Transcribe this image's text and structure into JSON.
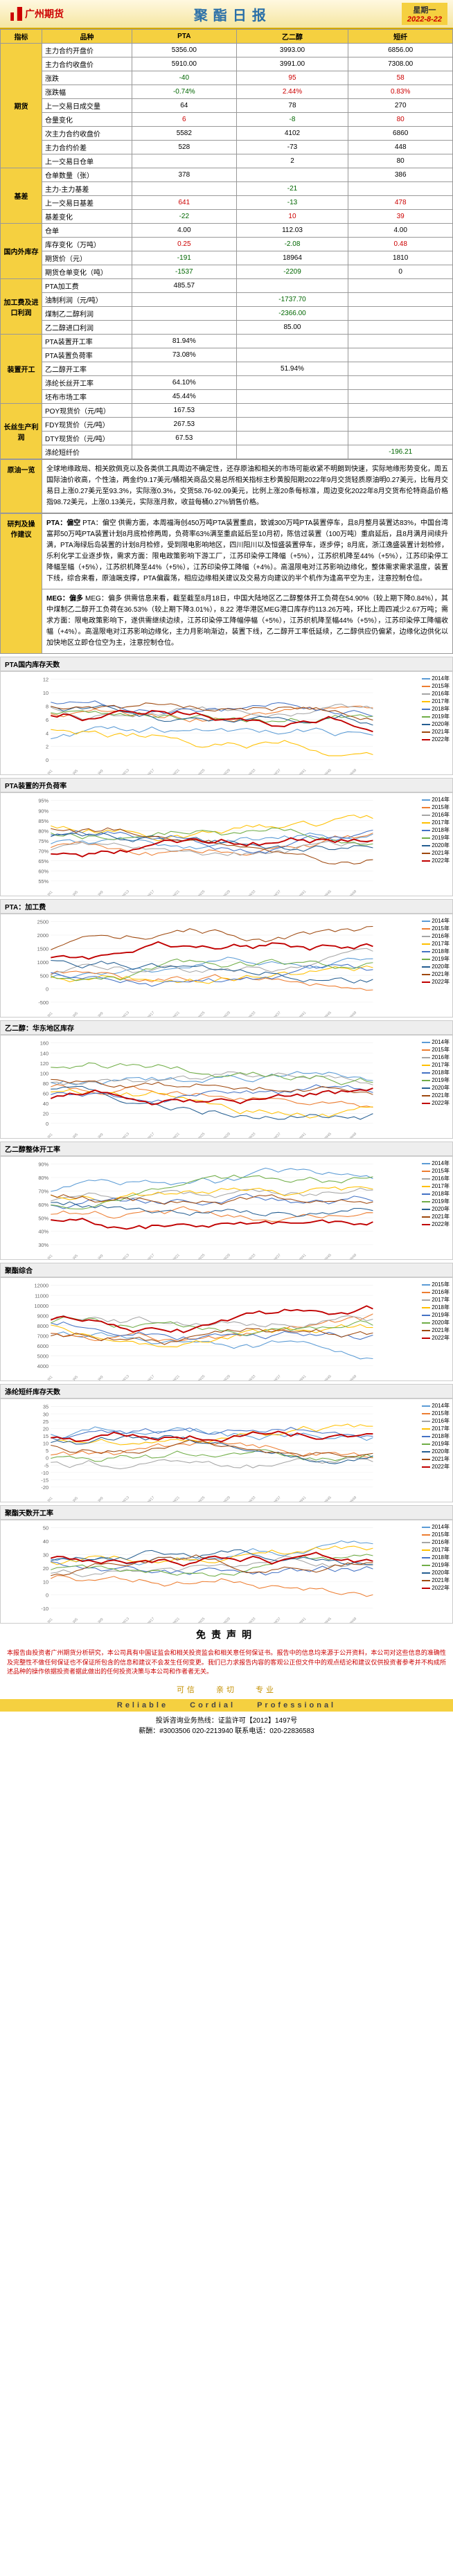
{
  "header": {
    "company": "广州期货",
    "title": "聚酯日报",
    "weekday": "星期一",
    "date": "2022-8-22"
  },
  "table": {
    "headers": [
      "指标",
      "品种",
      "PTA",
      "乙二醇",
      "短纤"
    ],
    "groups": [
      {
        "cat": "期货",
        "rows": [
          {
            "label": "主力合约开盘价",
            "pta": "5356.00",
            "meg": "3993.00",
            "pf": "6856.00"
          },
          {
            "label": "主力合约收盘价",
            "pta": "5910.00",
            "meg": "3991.00",
            "pf": "7308.00"
          },
          {
            "label": "涨跌",
            "pta": "-40",
            "meg": "95",
            "pf": "58",
            "c": [
              "neg",
              "pos",
              "pos"
            ]
          },
          {
            "label": "涨跌幅",
            "pta": "-0.74%",
            "meg": "2.44%",
            "pf": "0.83%",
            "c": [
              "neg",
              "pos",
              "pos"
            ]
          },
          {
            "label": "上一交易日成交量",
            "pta": "64",
            "meg": "78",
            "pf": "270"
          },
          {
            "label": "仓量变化",
            "pta": "6",
            "meg": "-8",
            "pf": "80",
            "c": [
              "pos",
              "neg",
              "pos"
            ]
          },
          {
            "label": "次主力合约收盘价",
            "pta": "5582",
            "meg": "4102",
            "pf": "6860"
          },
          {
            "label": "主力合约价差",
            "pta": "528",
            "meg": "-73",
            "pf": "448"
          },
          {
            "label": "上一交易日仓单",
            "pta": "",
            "meg": "2",
            "pf": "80"
          }
        ]
      },
      {
        "cat": "基差",
        "rows": [
          {
            "label": "仓单数量（张）",
            "pta": "378",
            "meg": "",
            "pf": "386"
          },
          {
            "label": "主力-主力基差",
            "pta": "",
            "meg": "-21",
            "pf": "",
            "c": [
              "",
              "neg",
              ""
            ]
          },
          {
            "label": "上一交易日基差",
            "pta": "641",
            "meg": "-13",
            "pf": "478",
            "c": [
              "pos",
              "neg",
              "pos"
            ]
          },
          {
            "label": "基差变化",
            "pta": "-22",
            "meg": "10",
            "pf": "39",
            "c": [
              "neg",
              "pos",
              "pos"
            ]
          }
        ]
      },
      {
        "cat": "国内外库存",
        "rows": [
          {
            "label": "仓单",
            "pta": "4.00",
            "meg": "112.03",
            "pf": "4.00"
          },
          {
            "label": "库存变化（万吨）",
            "pta": "0.25",
            "meg": "-2.08",
            "pf": "0.48",
            "c": [
              "pos",
              "neg",
              "pos"
            ]
          },
          {
            "label": "期货价（元）",
            "pta": "-191",
            "meg": "18964",
            "pf": "1810",
            "c": [
              "neg",
              "",
              ""
            ]
          },
          {
            "label": "期货仓单变化（吨）",
            "pta": "-1537",
            "meg": "-2209",
            "pf": "0",
            "c": [
              "neg",
              "neg",
              ""
            ]
          }
        ]
      },
      {
        "cat": "加工费及进口利润",
        "rows": [
          {
            "label": "PTA加工费",
            "pta": "485.57",
            "meg": "",
            "pf": ""
          },
          {
            "label": "油制利润（元/吨）",
            "pta": "",
            "meg": "-1737.70",
            "pf": "",
            "c": [
              "",
              "neg",
              ""
            ]
          },
          {
            "label": "煤制乙二醇利润",
            "pta": "",
            "meg": "-2366.00",
            "pf": "",
            "c": [
              "",
              "neg",
              ""
            ]
          },
          {
            "label": "乙二醇进口利润",
            "pta": "",
            "meg": "85.00",
            "pf": ""
          }
        ]
      },
      {
        "cat": "装置开工",
        "rows": [
          {
            "label": "PTA装置开工率",
            "pta": "81.94%",
            "meg": "",
            "pf": ""
          },
          {
            "label": "PTA装置负荷率",
            "pta": "73.08%",
            "meg": "",
            "pf": ""
          },
          {
            "label": "乙二醇开工率",
            "pta": "",
            "meg": "51.94%",
            "pf": ""
          },
          {
            "label": "涤纶长丝开工率",
            "pta": "64.10%",
            "meg": "",
            "pf": ""
          },
          {
            "label": "坯布市场工率",
            "pta": "45.44%",
            "meg": "",
            "pf": ""
          }
        ]
      },
      {
        "cat": "长丝生产利润",
        "rows": [
          {
            "label": "POY现货价（元/吨）",
            "pta": "167.53",
            "meg": "",
            "pf": ""
          },
          {
            "label": "FDY现货价（元/吨）",
            "pta": "267.53",
            "meg": "",
            "pf": ""
          },
          {
            "label": "DTY现货价（元/吨）",
            "pta": "67.53",
            "meg": "",
            "pf": ""
          },
          {
            "label": "涤纶短纤价",
            "pta": "",
            "meg": "",
            "pf": "-196.21",
            "c": [
              "",
              "",
              "neg"
            ]
          }
        ]
      }
    ]
  },
  "oil": {
    "cat": "原油一览",
    "content": "全球地缘政局、相关欧佩克以及各类供工具周边不确定性，还存原油和相关的市场可能收紧不明朗到快速，实际地缘形势变化，周五国际油价收高，个性油，两金约9.17美元/桶相关商品交易总所相关指标主秒黄股阳期2022年9月交货轻质原油明0.27美元，比每月交易日上涨0.27美元至93.3%，实际涨0.3%，交货58.76-92.09美元，比例上涨20条每标准，周边变化2022年8月交货布伦特商品价格指98.72美元，上涨0.13美元，实际涨月款，收益每桶0.27%销售价格。"
  },
  "analysis": {
    "cat": "研判及操作建议",
    "pta": "PTA：偏空 供需方面，本周福海创450万吨PTA装置重启，致诚300万吨PTA装置停车，且8月整月装置达83%，中国台湾富邦50万吨PTA装置计划8月底检修两周，负荷率63%满至重启延后至10月初，陈信过装置（100万吨）重启延后，且8月满月间续升满，PTA海绿后岛装置的计划8月检修，受到限电影响地区，四川阳川以及恒盛装置停车，逐步停；8月底，浙江逸盛装置计划检修，乐利化学工业逐步恢，需求方面：限电政策影响下游工厂，江苏印染停工降幅（+5%），江苏织机降至44%（+5%），江苏印染停工降幅至幅（+5%），江苏织机降至44%（+5%），江苏印染停工降幅（+4%）。高温限电对江苏影响边缘化，整体需求需求温度，装置下线，综合来看，原油端支撑，PTA偏震荡，相应边缘相关建议及交易方向建议的半个机作为逢高平空为主，注意控制仓位。",
    "meg": "MEG：偏多 供需信息来看，截至截至8月18日，中国大陆地区乙二醇整体开工负荷在54.90%（较上期下降0.84%），其中煤制乙二醇开工负荷在36.53%（较上期下降3.01%），8.22 港华港区MEG港口库存约113.26万吨，环比上周四减少2.67万吨；需求方面：限电政策影响下，遂供需继续边续，江苏印染停工降幅停幅（+5%），江苏织机降至幅44%（+5%），江苏印染停工降幅收幅（+4%）。高温限电对江苏影响边缘化，主力月影响渐边，装置下线，乙二醇开工率低延续，乙二醇供应仍偏紧，边缘化边供化以加快地区立即仓位空为主，注意控制仓位。"
  },
  "charts": [
    {
      "title": "PTA国内库存天数",
      "ymin": 0,
      "ymax": 12,
      "ystep": 2,
      "unit": "",
      "style": "multi"
    },
    {
      "title": "PTA装置的开负荷率",
      "ymin": 55,
      "ymax": 95,
      "ystep": 5,
      "unit": "%",
      "style": "multi"
    },
    {
      "title": "PTA：加工费",
      "ymin": -500,
      "ymax": 2500,
      "ystep": 500,
      "unit": "",
      "style": "multi"
    },
    {
      "title": "乙二醇：华东地区库存",
      "ymin": 0,
      "ymax": 160,
      "ystep": 20,
      "unit": "",
      "style": "multi"
    },
    {
      "title": "乙二醇整体开工率",
      "ymin": 30,
      "ymax": 90,
      "ystep": 10,
      "unit": "%",
      "style": "multi"
    },
    {
      "title": "聚酯综合",
      "ymin": 4000,
      "ymax": 12000,
      "ystep": 1000,
      "unit": "",
      "style": "series"
    },
    {
      "title": "涤纶短纤库存天数",
      "ymin": -20,
      "ymax": 35,
      "ystep": 5,
      "unit": "",
      "style": "multi"
    },
    {
      "title": "聚酯天数开工率",
      "ymin": -10,
      "ymax": 50,
      "ystep": 10,
      "unit": "",
      "style": "multi"
    }
  ],
  "chart_years": [
    "2014年",
    "2015年",
    "2016年",
    "2017年",
    "2018年",
    "2019年",
    "2020年",
    "2021年",
    "2022年"
  ],
  "chart_colors": [
    "#5b9bd5",
    "#ed7d31",
    "#a5a5a5",
    "#ffc000",
    "#4472c4",
    "#70ad47",
    "#255e91",
    "#9e480e",
    "#c00000"
  ],
  "series_labels": [
    "2015年",
    "2016年",
    "2017年",
    "2018年",
    "2019年",
    "2020年",
    "2021年",
    "2022年"
  ],
  "series_colors": [
    "#5b9bd5",
    "#ed7d31",
    "#a5a5a5",
    "#ffc000",
    "#4472c4",
    "#70ad47",
    "#9e480e",
    "#c00000"
  ],
  "disclaimer": {
    "title": "免责声明",
    "body": "本报告由投资者广州期货分析研究，本公司具有中国证监会和相关投资监会和相关意任何保证书。报告中的信息均来源于公开资料，本公司对这些信息的准确性及完整性不做任何保证也不保证所包含的信息和建议不会发生任何变更。我们已力求报告内容的客观公正但文件中的观点结论和建议仅供投资者参考并不构成所述品种的操作依据投资者据此做出的任何投资决策与本公司和作者者无关。"
  },
  "footer": {
    "tags_cn": [
      "可信",
      "亲切",
      "专业"
    ],
    "tags_en": [
      "Reliable",
      "Cordial",
      "Professional"
    ],
    "contact": "投诉咨询业务热线：证监许可【2012】1497号",
    "phone": "薪酬：#3003506 020-2213940  联系电话：020-22836583"
  }
}
